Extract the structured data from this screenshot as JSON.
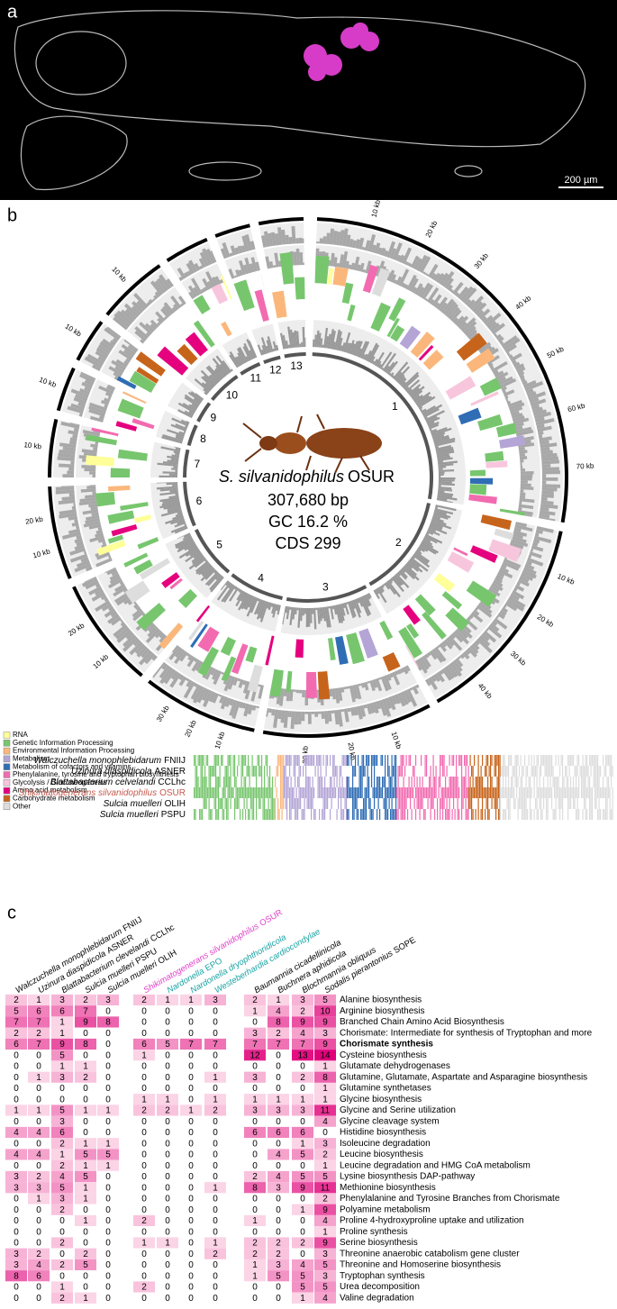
{
  "panel_labels": [
    "a",
    "b",
    "c"
  ],
  "panel_a": {
    "scale_bar": "200 µm"
  },
  "panel_b": {
    "genome": {
      "species": "S. silvanidophilus",
      "strain": "OSUR",
      "length": "307,680 bp",
      "gc": "GC 16.2 %",
      "cds": "CDS 299"
    },
    "contigs": [
      {
        "label": "1",
        "kb": [
          "10 kb",
          "20 kb",
          "30 kb",
          "40 kb",
          "50 kb",
          "60 kb",
          "70 kb"
        ]
      },
      {
        "label": "2",
        "kb": [
          "10 kb",
          "20 kb",
          "30 kb",
          "40 kb"
        ]
      },
      {
        "label": "3",
        "kb": [
          "10 kb",
          "20 kb",
          "30 kb"
        ]
      },
      {
        "label": "4",
        "kb": [
          "10 kb",
          "20 kb",
          "30 kb"
        ]
      },
      {
        "label": "5",
        "kb": [
          "10 kb",
          "20 kb"
        ]
      },
      {
        "label": "6",
        "kb": [
          "10 kb",
          "20 kb"
        ]
      },
      {
        "label": "7",
        "kb": [
          "10 kb"
        ]
      },
      {
        "label": "8",
        "kb": [
          "10 kb"
        ]
      },
      {
        "label": "9",
        "kb": [
          "10 kb"
        ]
      },
      {
        "label": "10",
        "kb": [
          "10 kb"
        ]
      },
      {
        "label": "11",
        "kb": []
      },
      {
        "label": "12",
        "kb": []
      },
      {
        "label": "13",
        "kb": []
      }
    ],
    "legend": [
      {
        "label": "RNA",
        "color": "#ffff99"
      },
      {
        "label": "Genetic Information Processing",
        "color": "#77c66e"
      },
      {
        "label": "Environmental Information Processing",
        "color": "#fbb77b"
      },
      {
        "label": "Metabolism",
        "color": "#b4a5d6"
      },
      {
        "label": "Metabolism of cofactors and vitamins",
        "color": "#2f6db5"
      },
      {
        "label": "Phenylalanine, tyrosine and tryptophan biosynthesis",
        "color": "#f26bb0"
      },
      {
        "label": "Glycolysis / Gluconeogenesis",
        "color": "#f7c6dd"
      },
      {
        "label": "Amino acid metabolism",
        "color": "#e5007e"
      },
      {
        "label": "Carbohydrate metabolism",
        "color": "#c7641b"
      },
      {
        "label": "Other",
        "color": "#dddddd"
      }
    ],
    "genomes": [
      {
        "species": "Walczuchella monophlebidarum",
        "strain": "FNIIJ",
        "color": "#000000"
      },
      {
        "species": "Uzinura diaspidicola",
        "strain": "ASNER",
        "color": "#000000"
      },
      {
        "species": "Blattabacterium celvelandi",
        "strain": "CCLhc",
        "color": "#000000"
      },
      {
        "species": "Shikimatogenerans silvanidophilus",
        "strain": "OSUR",
        "color": "#c55a4f"
      },
      {
        "species": "Sulcia muelleri",
        "strain": "OLIH",
        "color": "#000000"
      },
      {
        "species": "Sulcia muelleri",
        "strain": "PSPU",
        "color": "#000000"
      }
    ]
  },
  "panel_c": {
    "columns": [
      {
        "species": "Walczuchella monophlebidarum",
        "strain": "FNIIJ",
        "color": "#000000"
      },
      {
        "species": "Uzinura diaspidicola",
        "strain": "ASNER",
        "color": "#000000"
      },
      {
        "species": "Blattabacterium clevelandi",
        "strain": "CCLhc",
        "color": "#000000"
      },
      {
        "species": "Sulcia muelleri",
        "strain": "PSPU",
        "color": "#000000"
      },
      {
        "species": "Sulcia muelleri",
        "strain": "OLIH",
        "color": "#000000"
      },
      {
        "species": "Shikimatogenerans silvanidophilus",
        "strain": "OSUR",
        "color": "#e040c8"
      },
      {
        "species": "Nardonella",
        "strain": "EPO",
        "color": "#1aa3a3"
      },
      {
        "species": "Nardonella dryophthoridicola",
        "strain": "",
        "color": "#1aa3a3"
      },
      {
        "species": "Westeberhardia cardiocondylae",
        "strain": "",
        "color": "#1aa3a3"
      },
      {
        "species": "Baumannia cicadellinicola",
        "strain": "",
        "color": "#000000"
      },
      {
        "species": "Buchnera aphidicola",
        "strain": "",
        "color": "#000000"
      },
      {
        "species": "Blochmannia obliquus",
        "strain": "",
        "color": "#000000"
      },
      {
        "species": "Sodalis pierantonius",
        "strain": "SOPE",
        "color": "#000000"
      }
    ],
    "rows": [
      {
        "pathway": "Alanine biosynthesis",
        "values": [
          2,
          1,
          3,
          2,
          3,
          2,
          1,
          1,
          3,
          2,
          1,
          3,
          5
        ]
      },
      {
        "pathway": "Arginine biosynthesis",
        "values": [
          5,
          6,
          6,
          7,
          0,
          0,
          0,
          0,
          0,
          1,
          4,
          2,
          10
        ]
      },
      {
        "pathway": "Branched Chain Amino Acid Biosynthesis",
        "values": [
          7,
          7,
          1,
          9,
          8,
          0,
          0,
          0,
          0,
          0,
          8,
          9,
          9
        ]
      },
      {
        "pathway": "Chorismate: Intermediate for synthesis of Tryptophan and more",
        "values": [
          2,
          2,
          1,
          0,
          0,
          0,
          0,
          0,
          0,
          3,
          2,
          4,
          3
        ]
      },
      {
        "pathway": "Chorismate synthesis",
        "bold": true,
        "values": [
          6,
          7,
          9,
          8,
          0,
          6,
          5,
          7,
          7,
          7,
          7,
          7,
          9
        ]
      },
      {
        "pathway": "Cysteine biosynthesis",
        "values": [
          0,
          0,
          5,
          0,
          0,
          1,
          0,
          0,
          0,
          12,
          0,
          13,
          14
        ]
      },
      {
        "pathway": "Glutamate dehydrogenases",
        "values": [
          0,
          0,
          1,
          1,
          0,
          0,
          0,
          0,
          0,
          0,
          0,
          0,
          1
        ]
      },
      {
        "pathway": "Glutamine, Glutamate, Aspartate and Asparagine biosynthesis",
        "values": [
          0,
          1,
          3,
          2,
          0,
          0,
          0,
          0,
          1,
          3,
          0,
          2,
          8
        ]
      },
      {
        "pathway": "Glutamine synthetases",
        "values": [
          0,
          0,
          0,
          0,
          0,
          0,
          0,
          0,
          0,
          0,
          0,
          0,
          1
        ]
      },
      {
        "pathway": "Glycine biosynthesis",
        "values": [
          0,
          0,
          0,
          0,
          0,
          1,
          1,
          0,
          1,
          1,
          1,
          1,
          1
        ]
      },
      {
        "pathway": "Glycine and Serine utilization",
        "values": [
          1,
          1,
          5,
          1,
          1,
          2,
          2,
          1,
          2,
          3,
          3,
          3,
          11
        ]
      },
      {
        "pathway": "Glycine cleavage system",
        "values": [
          0,
          0,
          3,
          0,
          0,
          0,
          0,
          0,
          0,
          0,
          0,
          0,
          4
        ]
      },
      {
        "pathway": "Histidine biosynthesis",
        "values": [
          4,
          4,
          6,
          0,
          0,
          0,
          0,
          0,
          0,
          6,
          6,
          6,
          0
        ]
      },
      {
        "pathway": "Isoleucine degradation",
        "values": [
          0,
          0,
          2,
          1,
          1,
          0,
          0,
          0,
          0,
          0,
          0,
          1,
          3
        ]
      },
      {
        "pathway": "Leucine biosynthesis",
        "values": [
          4,
          4,
          1,
          5,
          5,
          0,
          0,
          0,
          0,
          0,
          4,
          5,
          2
        ]
      },
      {
        "pathway": "Leucine degradation and HMG CoA metabolism",
        "values": [
          0,
          0,
          2,
          1,
          1,
          0,
          0,
          0,
          0,
          0,
          0,
          0,
          1
        ]
      },
      {
        "pathway": "Lysine biosynthesis DAP-pathway",
        "values": [
          3,
          2,
          4,
          5,
          0,
          0,
          0,
          0,
          0,
          2,
          4,
          5,
          5
        ]
      },
      {
        "pathway": "Methionine biosynthesis",
        "values": [
          3,
          3,
          5,
          1,
          0,
          0,
          0,
          0,
          1,
          8,
          3,
          9,
          11
        ]
      },
      {
        "pathway": "Phenylalanine and Tyrosine Branches from Chorismate",
        "values": [
          0,
          1,
          3,
          1,
          0,
          0,
          0,
          0,
          0,
          0,
          0,
          0,
          2
        ]
      },
      {
        "pathway": "Polyamine metabolism",
        "values": [
          0,
          0,
          2,
          0,
          0,
          0,
          0,
          0,
          0,
          0,
          0,
          1,
          9
        ]
      },
      {
        "pathway": "Proline 4-hydroxyproline uptake and utilization",
        "values": [
          0,
          0,
          0,
          1,
          0,
          2,
          0,
          0,
          0,
          1,
          0,
          0,
          4
        ]
      },
      {
        "pathway": "Proline synthesis",
        "values": [
          0,
          0,
          0,
          0,
          0,
          0,
          0,
          0,
          0,
          0,
          0,
          0,
          1
        ]
      },
      {
        "pathway": "Serine biosynthesis",
        "values": [
          0,
          0,
          2,
          0,
          0,
          1,
          1,
          0,
          1,
          2,
          2,
          2,
          9
        ]
      },
      {
        "pathway": "Threonine anaerobic catabolism gene cluster",
        "values": [
          3,
          2,
          0,
          2,
          0,
          0,
          0,
          0,
          2,
          2,
          2,
          0,
          3
        ]
      },
      {
        "pathway": "Threonine and Homoserine biosynthesis",
        "values": [
          3,
          4,
          2,
          5,
          0,
          0,
          0,
          0,
          0,
          1,
          3,
          4,
          5
        ]
      },
      {
        "pathway": "Tryptophan synthesis",
        "values": [
          8,
          6,
          0,
          0,
          0,
          0,
          0,
          0,
          0,
          1,
          5,
          5,
          3
        ]
      },
      {
        "pathway": "Urea decomposition",
        "values": [
          0,
          0,
          1,
          0,
          0,
          2,
          0,
          0,
          0,
          0,
          0,
          5,
          5
        ]
      },
      {
        "pathway": "Valine degradation",
        "values": [
          0,
          0,
          2,
          1,
          0,
          0,
          0,
          0,
          0,
          0,
          0,
          1,
          4
        ]
      }
    ]
  }
}
